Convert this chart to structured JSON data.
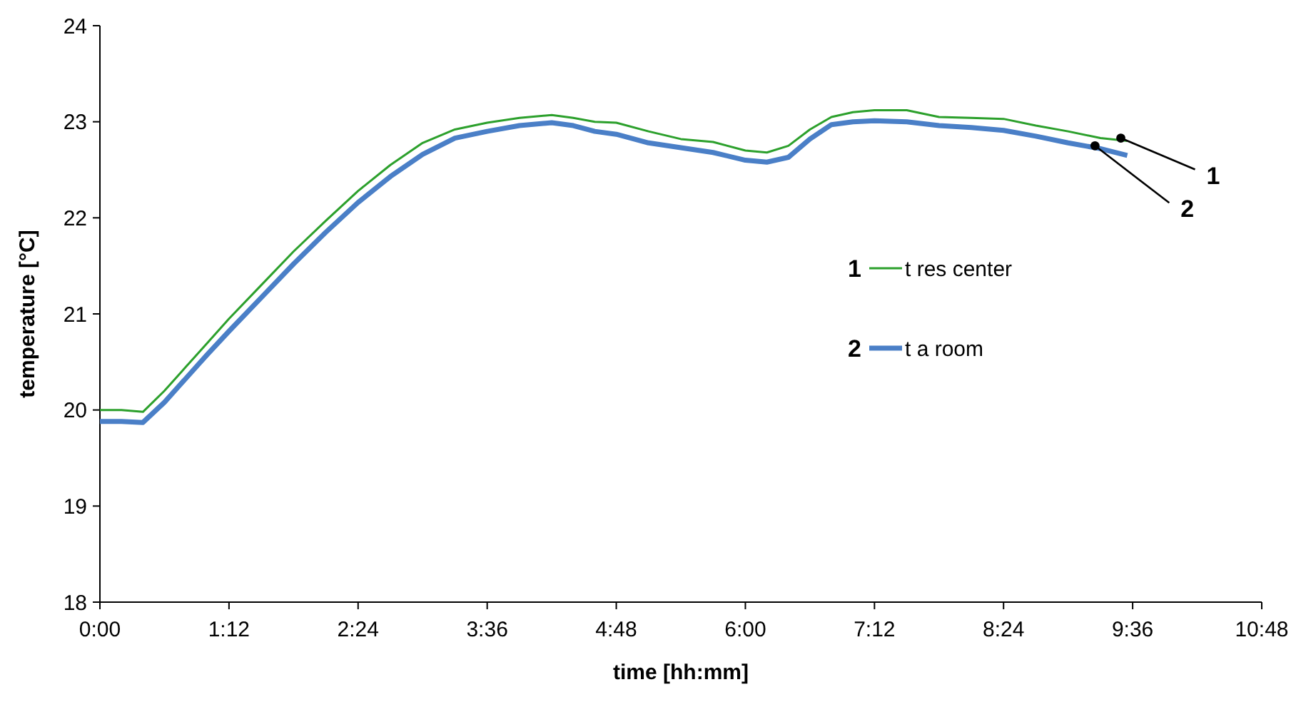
{
  "chart_data": {
    "type": "line",
    "xlabel": "time [hh:mm]",
    "ylabel": "temperature  [°C]",
    "xlim": [
      0,
      10.8
    ],
    "ylim": [
      18,
      24
    ],
    "xticks": [
      {
        "value": 0,
        "label": "0:00"
      },
      {
        "value": 1.2,
        "label": "1:12"
      },
      {
        "value": 2.4,
        "label": "2:24"
      },
      {
        "value": 3.6,
        "label": "3:36"
      },
      {
        "value": 4.8,
        "label": "4:48"
      },
      {
        "value": 6,
        "label": "6:00"
      },
      {
        "value": 7.2,
        "label": "7:12"
      },
      {
        "value": 8.4,
        "label": "8:24"
      },
      {
        "value": 9.6,
        "label": "9:36"
      },
      {
        "value": 10.8,
        "label": "10:48"
      }
    ],
    "yticks": [
      18,
      19,
      20,
      21,
      22,
      23,
      24
    ],
    "grid": false,
    "legend": "right",
    "marker": "none",
    "line_style": "solid",
    "annotations": [
      {
        "text": "1",
        "x": 9.49,
        "y": 22.83
      },
      {
        "text": "2",
        "x": 9.25,
        "y": 22.75
      }
    ],
    "series": [
      {
        "name": "t res center",
        "color": "#2ca02c",
        "x": [
          0,
          0.2,
          0.4,
          0.6,
          0.8,
          1.0,
          1.2,
          1.5,
          1.8,
          2.1,
          2.4,
          2.7,
          3.0,
          3.3,
          3.6,
          3.9,
          4.2,
          4.4,
          4.6,
          4.8,
          5.1,
          5.4,
          5.7,
          6.0,
          6.2,
          6.4,
          6.6,
          6.8,
          7.0,
          7.2,
          7.5,
          7.8,
          8.1,
          8.4,
          8.7,
          9.0,
          9.3,
          9.55
        ],
        "values": [
          20.0,
          20.0,
          19.98,
          20.2,
          20.45,
          20.7,
          20.95,
          21.3,
          21.65,
          21.97,
          22.28,
          22.55,
          22.78,
          22.92,
          22.99,
          23.04,
          23.07,
          23.04,
          23.0,
          22.99,
          22.9,
          22.82,
          22.79,
          22.7,
          22.68,
          22.75,
          22.92,
          23.05,
          23.1,
          23.12,
          23.12,
          23.05,
          23.04,
          23.03,
          22.96,
          22.9,
          22.83,
          22.8
        ]
      },
      {
        "name": "t a room",
        "color": "#4a7fc7",
        "x": [
          0,
          0.2,
          0.4,
          0.6,
          0.8,
          1.0,
          1.2,
          1.5,
          1.8,
          2.1,
          2.4,
          2.7,
          3.0,
          3.3,
          3.6,
          3.9,
          4.2,
          4.4,
          4.6,
          4.8,
          5.1,
          5.4,
          5.7,
          6.0,
          6.2,
          6.4,
          6.6,
          6.8,
          7.0,
          7.2,
          7.5,
          7.8,
          8.1,
          8.4,
          8.7,
          9.0,
          9.3,
          9.55
        ],
        "values": [
          19.88,
          19.88,
          19.87,
          20.08,
          20.33,
          20.58,
          20.82,
          21.17,
          21.52,
          21.85,
          22.16,
          22.43,
          22.66,
          22.83,
          22.9,
          22.96,
          22.99,
          22.96,
          22.9,
          22.87,
          22.78,
          22.73,
          22.68,
          22.6,
          22.58,
          22.63,
          22.82,
          22.97,
          23.0,
          23.01,
          23.0,
          22.96,
          22.94,
          22.91,
          22.85,
          22.78,
          22.72,
          22.65
        ]
      }
    ]
  }
}
